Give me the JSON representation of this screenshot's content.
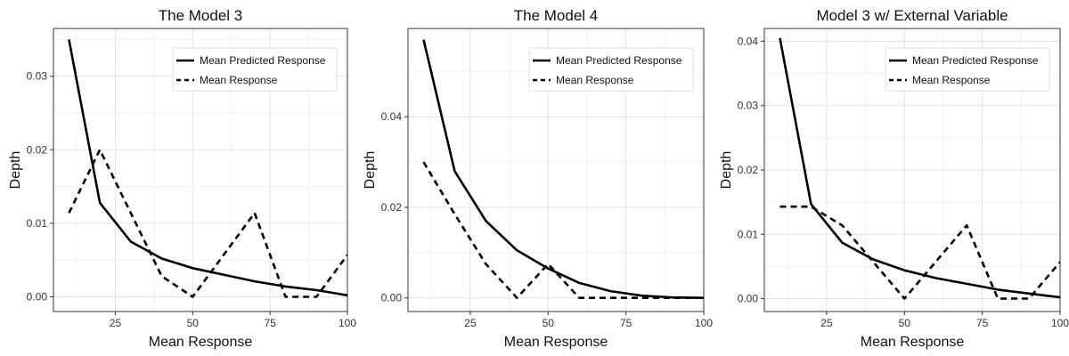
{
  "chart_data": [
    {
      "type": "line",
      "title": "The Model 3",
      "xlabel": "Mean Response",
      "ylabel": "Depth",
      "xlim": [
        5,
        100
      ],
      "ylim": [
        -0.002,
        0.0365
      ],
      "xticks": [
        25,
        50,
        75,
        100
      ],
      "yticks": [
        0,
        0.01,
        0.02,
        0.03
      ],
      "ytick_labels": [
        "0.00",
        "0.01",
        "0.02",
        "0.03"
      ],
      "grid": true,
      "legend_position": "top-right",
      "series": [
        {
          "name": "Mean Predicted Response",
          "line_style": "solid",
          "x": [
            10,
            20,
            30,
            40,
            50,
            60,
            70,
            80,
            90,
            100
          ],
          "y": [
            0.035,
            0.0128,
            0.0075,
            0.0052,
            0.0039,
            0.003,
            0.0021,
            0.0014,
            0.0009,
            0.0002
          ]
        },
        {
          "name": "Mean Response",
          "line_style": "dashed",
          "x": [
            10,
            20,
            30,
            40,
            50,
            60,
            70,
            80,
            90,
            100
          ],
          "y": [
            0.0114,
            0.02,
            0.0114,
            0.0028,
            0.0,
            0.0057,
            0.0114,
            0.0,
            0.0,
            0.0057
          ]
        }
      ]
    },
    {
      "type": "line",
      "title": "The Model 4",
      "xlabel": "Mean Response",
      "ylabel": "Depth",
      "xlim": [
        5,
        100
      ],
      "ylim": [
        -0.003,
        0.0595
      ],
      "xticks": [
        25,
        50,
        75,
        100
      ],
      "yticks": [
        0,
        0.02,
        0.04
      ],
      "ytick_labels": [
        "0.00",
        "0.02",
        "0.04"
      ],
      "grid": true,
      "legend_position": "top-right",
      "series": [
        {
          "name": "Mean Predicted Response",
          "line_style": "solid",
          "x": [
            10,
            20,
            30,
            40,
            50,
            60,
            70,
            80,
            90,
            100
          ],
          "y": [
            0.057,
            0.028,
            0.017,
            0.0105,
            0.0065,
            0.0033,
            0.0015,
            0.0005,
            0.0001,
            0.0
          ]
        },
        {
          "name": "Mean Response",
          "line_style": "dashed",
          "x": [
            10,
            20,
            30,
            40,
            50,
            60,
            70,
            80,
            90,
            100
          ],
          "y": [
            0.03,
            0.0185,
            0.0075,
            0.0,
            0.0075,
            0.0,
            0.0,
            0.0,
            0.0,
            0.0
          ]
        }
      ]
    },
    {
      "type": "line",
      "title": "Model 3 w/ External Variable",
      "xlabel": "Mean Response",
      "ylabel": "Depth",
      "xlim": [
        5,
        100
      ],
      "ylim": [
        -0.002,
        0.042
      ],
      "xticks": [
        25,
        50,
        75,
        100
      ],
      "yticks": [
        0,
        0.01,
        0.02,
        0.03,
        0.04
      ],
      "ytick_labels": [
        "0.00",
        "0.01",
        "0.02",
        "0.03",
        "0.04"
      ],
      "grid": true,
      "legend_position": "top-right",
      "series": [
        {
          "name": "Mean Predicted Response",
          "line_style": "solid",
          "x": [
            10,
            20,
            30,
            40,
            50,
            60,
            70,
            80,
            90,
            100
          ],
          "y": [
            0.0405,
            0.0147,
            0.0087,
            0.0061,
            0.0044,
            0.0032,
            0.0023,
            0.0014,
            0.0008,
            0.0002
          ]
        },
        {
          "name": "Mean Response",
          "line_style": "dashed",
          "x": [
            10,
            20,
            30,
            40,
            50,
            60,
            70,
            80,
            90,
            100
          ],
          "y": [
            0.0143,
            0.0143,
            0.0114,
            0.0057,
            0.0,
            0.0057,
            0.0114,
            0.0,
            0.0,
            0.0057
          ]
        }
      ]
    }
  ]
}
